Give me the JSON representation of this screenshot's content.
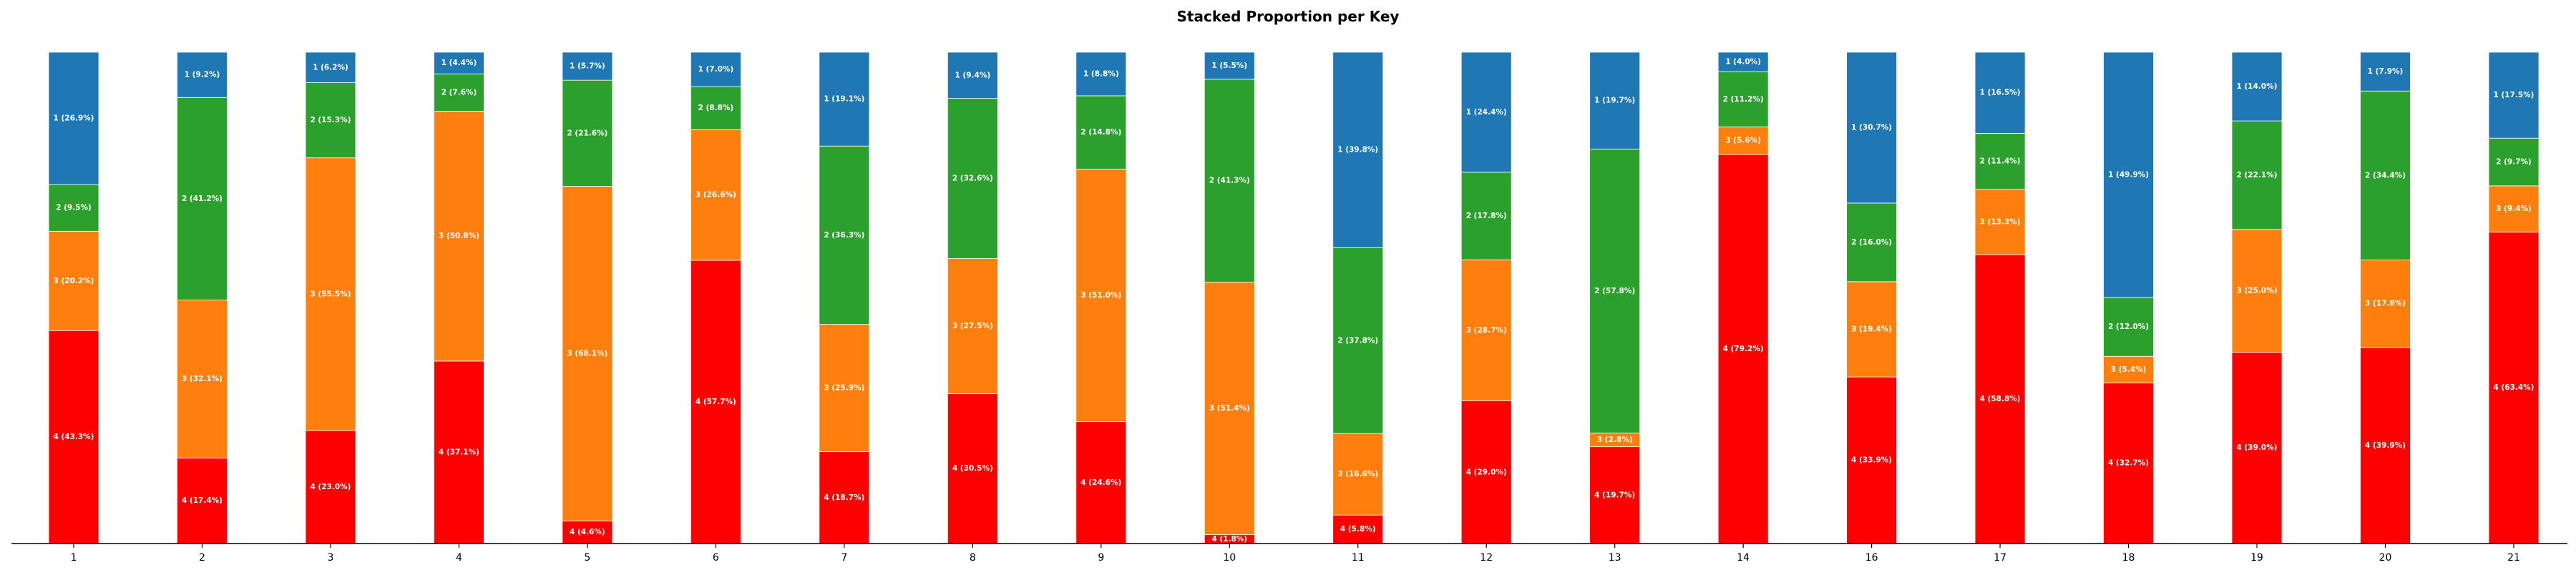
{
  "chart_data": {
    "type": "bar",
    "stacked": true,
    "normalized": true,
    "title": "Stacked Proportion per Key",
    "xlabel": "",
    "ylabel": "",
    "ylim": [
      0,
      1
    ],
    "grid": false,
    "categories": [
      "1",
      "2",
      "3",
      "4",
      "5",
      "6",
      "7",
      "8",
      "9",
      "10",
      "11",
      "12",
      "13",
      "14",
      "16",
      "17",
      "18",
      "19",
      "20",
      "21"
    ],
    "series": [
      {
        "name": "4",
        "color": "#ff0000",
        "values": [
          43.3,
          17.4,
          23.0,
          37.1,
          4.6,
          57.7,
          18.7,
          30.5,
          24.6,
          1.8,
          5.8,
          29.0,
          19.7,
          79.2,
          33.9,
          58.8,
          32.7,
          39.0,
          39.9,
          63.4
        ],
        "labels": [
          "4 (43.3%)",
          "4 (17.4%)",
          "4 (23.0%)",
          "4 (37.1%)",
          "4 (4.6%)",
          "4 (57.7%)",
          "4 (18.7%)",
          "4 (30.5%)",
          "4 (24.6%)",
          "4 (1.8%)",
          "4 (5.8%)",
          "4 (29.0%)",
          "4 (19.7%)",
          "4 (79.2%)",
          "4 (33.9%)",
          "4 (58.8%)",
          "4 (32.7%)",
          "4 (39.0%)",
          "4 (39.9%)",
          "4 (63.4%)"
        ]
      },
      {
        "name": "3",
        "color": "#ff7f0e",
        "values": [
          20.2,
          32.1,
          55.5,
          50.8,
          68.1,
          26.6,
          25.9,
          27.5,
          51.0,
          51.4,
          16.6,
          28.7,
          2.8,
          5.6,
          19.4,
          13.3,
          5.4,
          25.0,
          17.8,
          9.4
        ],
        "labels": [
          "3 (20.2%)",
          "3 (32.1%)",
          "3 (55.5%)",
          "3 (50.8%)",
          "3 (68.1%)",
          "3 (26.6%)",
          "3 (25.9%)",
          "3 (27.5%)",
          "3 (51.0%)",
          "3 (51.4%)",
          "3 (16.6%)",
          "3 (28.7%)",
          "3 (2.8%)",
          "3 (5.6%)",
          "3 (19.4%)",
          "3 (13.3%)",
          "3 (5.4%)",
          "3 (25.0%)",
          "3 (17.8%)",
          "3 (9.4%)"
        ]
      },
      {
        "name": "2",
        "color": "#2ca02c",
        "values": [
          9.5,
          41.2,
          15.3,
          7.6,
          21.6,
          8.8,
          36.3,
          32.6,
          14.8,
          41.3,
          37.8,
          17.8,
          57.8,
          11.2,
          16.0,
          11.4,
          12.0,
          22.1,
          34.4,
          9.7
        ],
        "labels": [
          "2 (9.5%)",
          "2 (41.2%)",
          "2 (15.3%)",
          "2 (7.6%)",
          "2 (21.6%)",
          "2 (8.8%)",
          "2 (36.3%)",
          "2 (32.6%)",
          "2 (14.8%)",
          "2 (41.3%)",
          "2 (37.8%)",
          "2 (17.8%)",
          "2 (57.8%)",
          "2 (11.2%)",
          "2 (16.0%)",
          "2 (11.4%)",
          "2 (12.0%)",
          "2 (22.1%)",
          "2 (34.4%)",
          "2 (9.7%)"
        ]
      },
      {
        "name": "1",
        "color": "#1f77b4",
        "values": [
          26.9,
          9.2,
          6.2,
          4.4,
          5.7,
          7.0,
          19.1,
          9.4,
          8.8,
          5.5,
          39.8,
          24.4,
          19.7,
          4.0,
          30.7,
          16.5,
          49.9,
          14.0,
          7.9,
          17.5
        ],
        "labels": [
          "1 (26.9%)",
          "1 (9.2%)",
          "1 (6.2%)",
          "1 (4.4%)",
          "1 (5.7%)",
          "1 (7.0%)",
          "1 (19.1%)",
          "1 (9.4%)",
          "1 (8.8%)",
          "1 (5.5%)",
          "1 (39.8%)",
          "1 (24.4%)",
          "1 (19.7%)",
          "1 (4.0%)",
          "1 (30.7%)",
          "1 (16.5%)",
          "1 (49.9%)",
          "1 (14.0%)",
          "1 (7.9%)",
          "1 (17.5%)"
        ]
      }
    ]
  }
}
